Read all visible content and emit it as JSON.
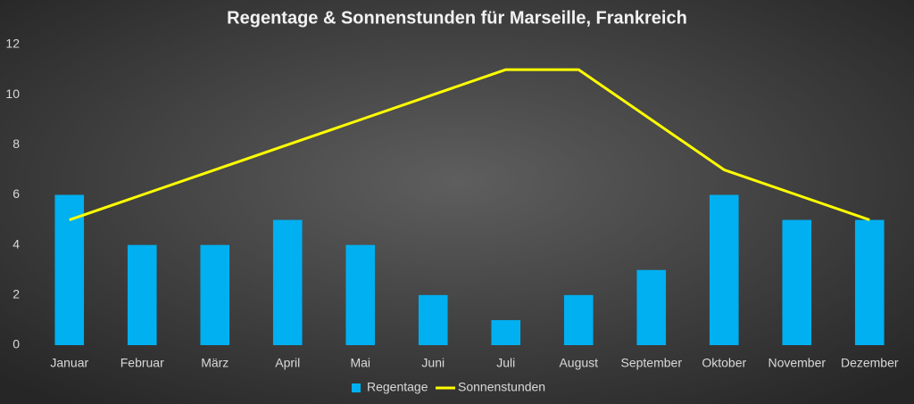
{
  "chart_data": {
    "type": "bar",
    "title": "Regentage & Sonnenstunden für Marseille, Frankreich",
    "categories": [
      "Januar",
      "Februar",
      "März",
      "April",
      "Mai",
      "Juni",
      "Juli",
      "August",
      "September",
      "Oktober",
      "November",
      "Dezember"
    ],
    "series": [
      {
        "name": "Regentage",
        "type": "bar",
        "color": "#00b0f0",
        "values": [
          6,
          4,
          4,
          5,
          4,
          2,
          1,
          2,
          3,
          6,
          5,
          5
        ]
      },
      {
        "name": "Sonnenstunden",
        "type": "line",
        "color": "#ffff00",
        "values": [
          5,
          6,
          7,
          8,
          9,
          10,
          11,
          11,
          9,
          7,
          6,
          5
        ]
      }
    ],
    "ylim": [
      0,
      12
    ],
    "yticks": [
      0,
      2,
      4,
      6,
      8,
      10,
      12
    ],
    "grid": false,
    "legend": "bottom"
  }
}
